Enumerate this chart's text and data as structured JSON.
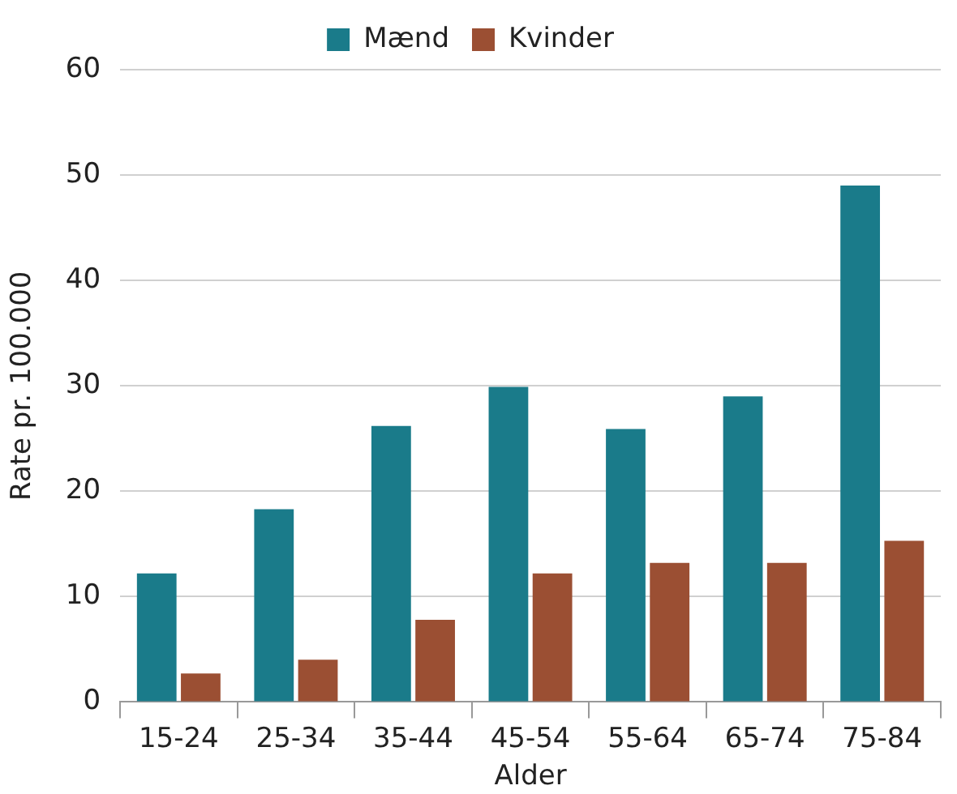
{
  "chart_data": {
    "type": "bar",
    "xlabel": "Alder",
    "ylabel": "Rate pr. 100.000",
    "categories": [
      "15-24",
      "25-34",
      "35-44",
      "45-54",
      "55-64",
      "65-74",
      "75-84"
    ],
    "series": [
      {
        "name": "Mænd",
        "color": "#1a7b8a",
        "values": [
          12.2,
          18.3,
          26.2,
          29.9,
          25.9,
          29,
          49
        ]
      },
      {
        "name": "Kvinder",
        "color": "#9b4f33",
        "values": [
          2.7,
          4,
          7.8,
          12.2,
          13.2,
          13.2,
          15.3
        ]
      }
    ],
    "ylim": [
      0,
      60
    ],
    "yticks": [
      0,
      10,
      20,
      30,
      40,
      50,
      60
    ],
    "grid": "y",
    "legend": "top"
  }
}
